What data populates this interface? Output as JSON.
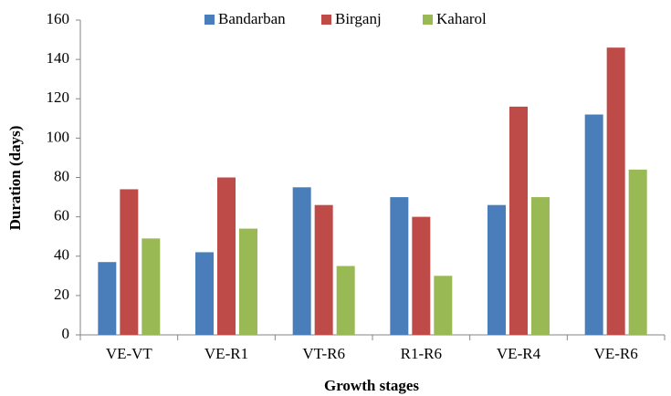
{
  "chart_data": {
    "type": "bar",
    "categories": [
      "VE-VT",
      "VE-R1",
      "VT-R6",
      "R1-R6",
      "VE-R4",
      "VE-R6"
    ],
    "series": [
      {
        "name": "Bandarban",
        "color": "#4a7ebb",
        "values": [
          37,
          42,
          75,
          70,
          66,
          112
        ]
      },
      {
        "name": "Birganj",
        "color": "#be4b48",
        "values": [
          74,
          80,
          66,
          60,
          116,
          146
        ]
      },
      {
        "name": "Kaharol",
        "color": "#98b954",
        "values": [
          49,
          54,
          35,
          30,
          70,
          84
        ]
      }
    ],
    "xlabel": "Growth stages",
    "ylabel": "Duration (days)",
    "ylim": [
      0,
      160
    ],
    "yticks": [
      0,
      20,
      40,
      60,
      80,
      100,
      120,
      140,
      160
    ],
    "grid": false,
    "legend": "top"
  }
}
